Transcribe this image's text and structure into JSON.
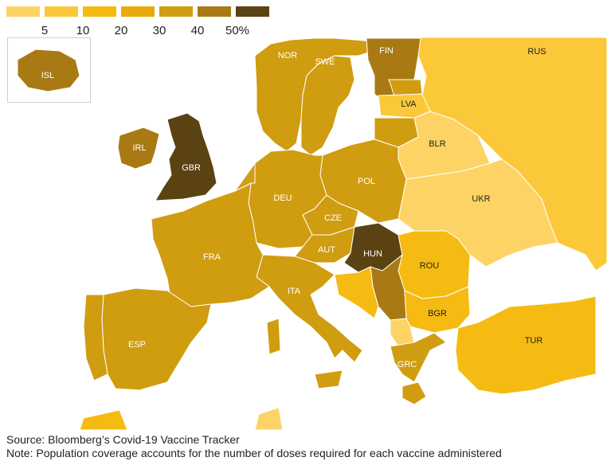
{
  "legend": {
    "bins": [
      {
        "label": "",
        "color": "#fed366"
      },
      {
        "label": "5",
        "color": "#fbc83a"
      },
      {
        "label": "10",
        "color": "#f6bb12"
      },
      {
        "label": "20",
        "color": "#e8aa08"
      },
      {
        "label": "30",
        "color": "#d09c10"
      },
      {
        "label": "40",
        "color": "#a97a13"
      },
      {
        "label": "50%",
        "color": "#5a4212"
      }
    ]
  },
  "countries": [
    {
      "code": "ISL",
      "label": "ISL",
      "color": "#a97a13"
    },
    {
      "code": "NOR",
      "label": "NOR",
      "color": "#d09c10"
    },
    {
      "code": "SWE",
      "label": "SWE",
      "color": "#d09c10"
    },
    {
      "code": "FIN",
      "label": "FIN",
      "color": "#a97a13"
    },
    {
      "code": "RUS",
      "label": "RUS",
      "color": "#fbc83a"
    },
    {
      "code": "LVA",
      "label": "LVA",
      "color": "#fbc83a"
    },
    {
      "code": "BLR",
      "label": "BLR",
      "color": "#fed366"
    },
    {
      "code": "IRL",
      "label": "IRL",
      "color": "#a97a13"
    },
    {
      "code": "GBR",
      "label": "GBR",
      "color": "#5a4212"
    },
    {
      "code": "DEU",
      "label": "DEU",
      "color": "#d09c10"
    },
    {
      "code": "POL",
      "label": "POL",
      "color": "#d09c10"
    },
    {
      "code": "UKR",
      "label": "UKR",
      "color": "#fed366"
    },
    {
      "code": "CZE",
      "label": "CZE",
      "color": "#d09c10"
    },
    {
      "code": "FRA",
      "label": "FRA",
      "color": "#d09c10"
    },
    {
      "code": "AUT",
      "label": "AUT",
      "color": "#d09c10"
    },
    {
      "code": "HUN",
      "label": "HUN",
      "color": "#5a4212"
    },
    {
      "code": "ROU",
      "label": "ROU",
      "color": "#f6bb12"
    },
    {
      "code": "ITA",
      "label": "ITA",
      "color": "#d09c10"
    },
    {
      "code": "BGR",
      "label": "BGR",
      "color": "#f6bb12"
    },
    {
      "code": "ESP",
      "label": "ESP",
      "color": "#d09c10"
    },
    {
      "code": "TUR",
      "label": "TUR",
      "color": "#f6bb12"
    },
    {
      "code": "GRC",
      "label": "GRC",
      "color": "#d09c10"
    },
    {
      "code": "SRB",
      "label": "",
      "color": "#a97a13"
    },
    {
      "code": "PRT",
      "label": "",
      "color": "#d09c10"
    }
  ],
  "footer": {
    "source": "Source: Bloomberg’s Covid-19 Vaccine Tracker",
    "note": "Note: Population coverage accounts for the number of doses required for each vaccine administered"
  }
}
